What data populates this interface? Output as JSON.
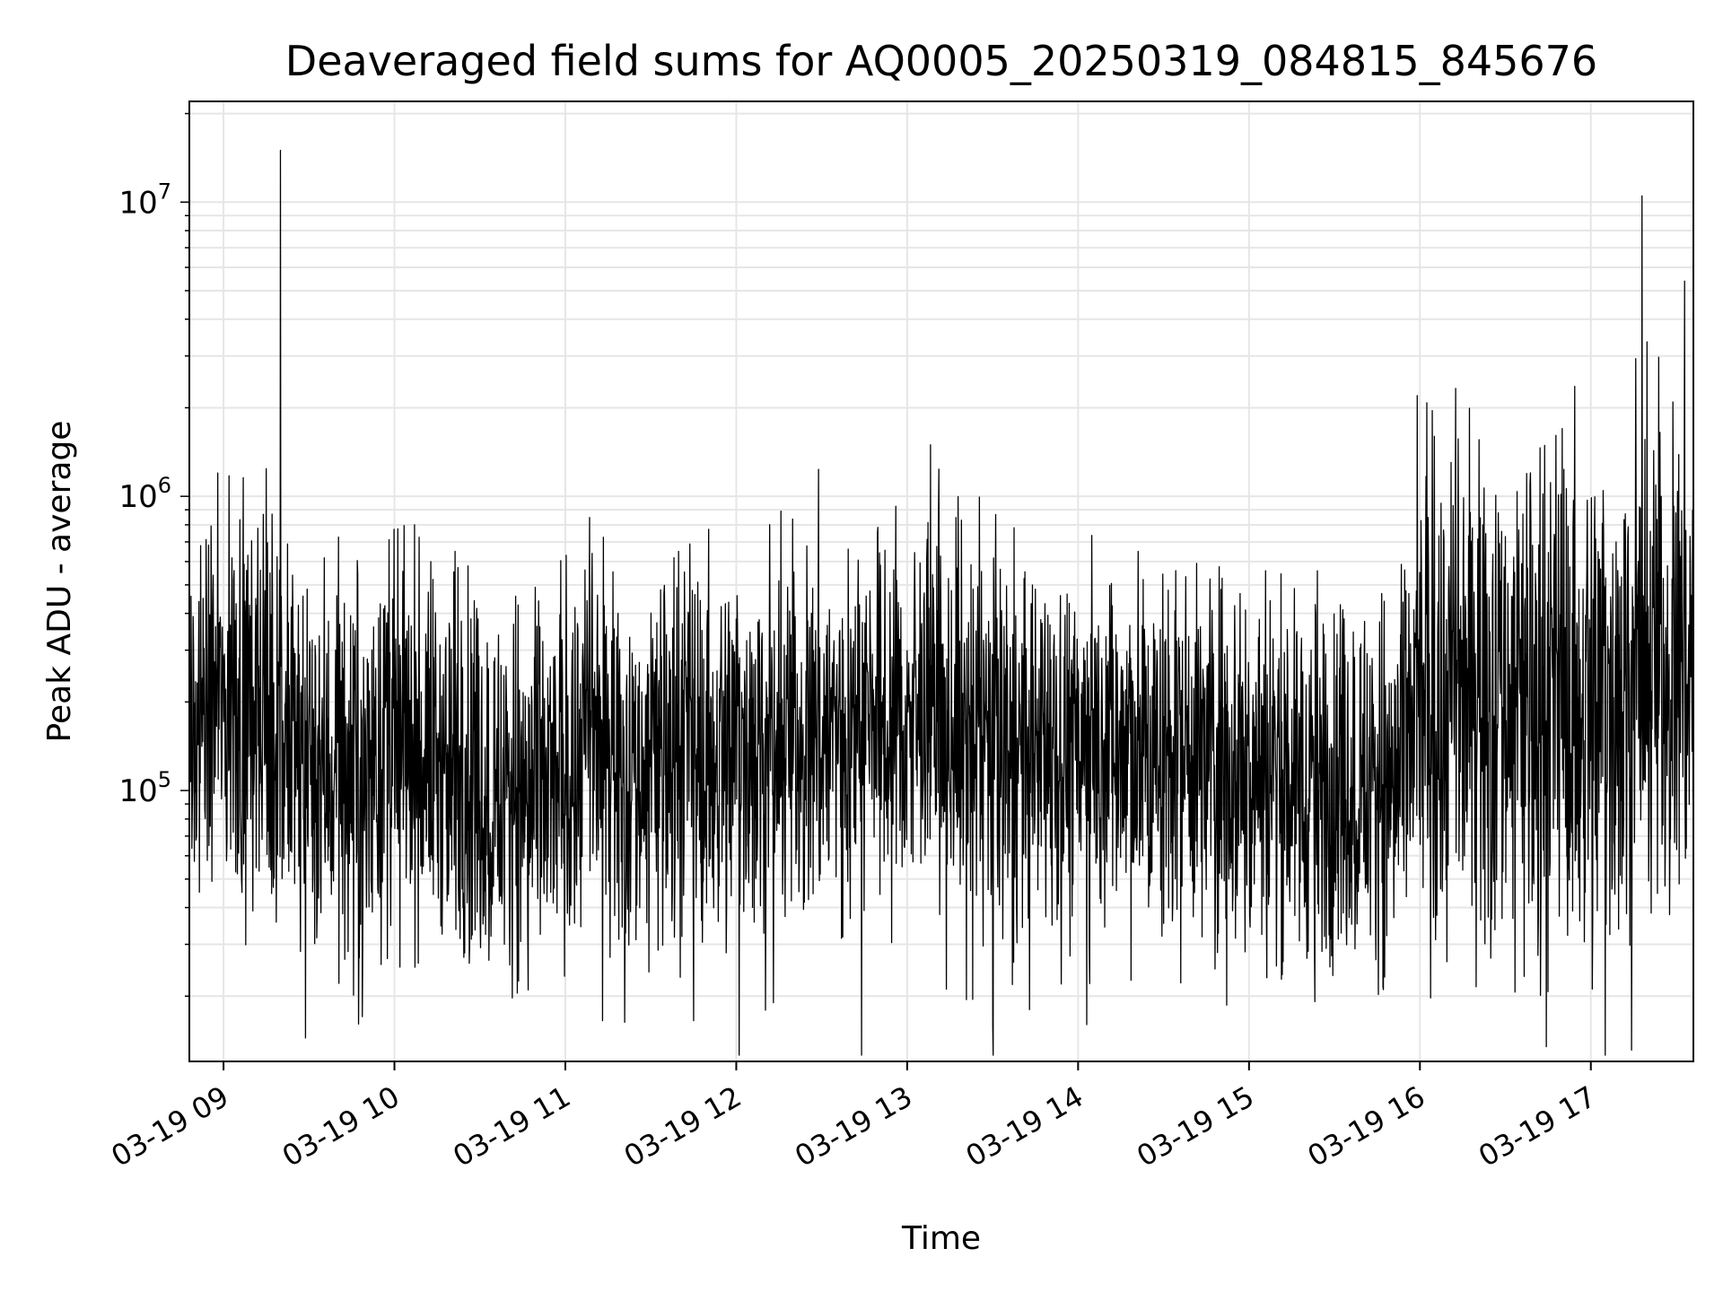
{
  "chart_data": {
    "type": "line",
    "title": "Deaveraged field sums for AQ0005_20250319_084815_845676",
    "xlabel": "Time",
    "ylabel": "Peak ADU - average",
    "yscale": "log",
    "xlim": [
      "03-19 08:48",
      "03-19 17:36"
    ],
    "ylim": [
      12000,
      22000000
    ],
    "grid": true,
    "line_color": "#000000",
    "x_ticks": [
      {
        "value": "03-19 09:00",
        "label": "03-19 09"
      },
      {
        "value": "03-19 10:00",
        "label": "03-19 10"
      },
      {
        "value": "03-19 11:00",
        "label": "03-19 11"
      },
      {
        "value": "03-19 12:00",
        "label": "03-19 12"
      },
      {
        "value": "03-19 13:00",
        "label": "03-19 13"
      },
      {
        "value": "03-19 14:00",
        "label": "03-19 14"
      },
      {
        "value": "03-19 15:00",
        "label": "03-19 15"
      },
      {
        "value": "03-19 16:00",
        "label": "03-19 16"
      },
      {
        "value": "03-19 17:00",
        "label": "03-19 17"
      }
    ],
    "y_ticks": [
      {
        "value": 100000,
        "base": "10",
        "exp": "5"
      },
      {
        "value": 1000000,
        "base": "10",
        "exp": "6"
      },
      {
        "value": 10000000,
        "base": "10",
        "exp": "7"
      }
    ],
    "series": [
      {
        "x": [
          "03-19 08:48",
          "03-19 08:54",
          "03-19 09:00",
          "03-19 09:06",
          "03-19 09:12",
          "03-19 09:18",
          "03-19 09:24",
          "03-19 09:30",
          "03-19 09:36",
          "03-19 09:42",
          "03-19 09:48",
          "03-19 09:54",
          "03-19 10:00",
          "03-19 10:06",
          "03-19 10:12",
          "03-19 10:18",
          "03-19 10:24",
          "03-19 10:30",
          "03-19 10:36",
          "03-19 10:42",
          "03-19 10:48",
          "03-19 10:54",
          "03-19 11:00",
          "03-19 11:06",
          "03-19 11:12",
          "03-19 11:18",
          "03-19 11:24",
          "03-19 11:30",
          "03-19 11:36",
          "03-19 11:42",
          "03-19 11:48",
          "03-19 11:54",
          "03-19 12:00",
          "03-19 12:06",
          "03-19 12:12",
          "03-19 12:18",
          "03-19 12:24",
          "03-19 12:30",
          "03-19 12:36",
          "03-19 12:42",
          "03-19 12:48",
          "03-19 12:54",
          "03-19 13:00",
          "03-19 13:06",
          "03-19 13:12",
          "03-19 13:18",
          "03-19 13:24",
          "03-19 13:30",
          "03-19 13:36",
          "03-19 13:42",
          "03-19 13:48",
          "03-19 13:54",
          "03-19 14:00",
          "03-19 14:06",
          "03-19 14:12",
          "03-19 14:18",
          "03-19 14:24",
          "03-19 14:30",
          "03-19 14:36",
          "03-19 14:42",
          "03-19 14:48",
          "03-19 14:54",
          "03-19 15:00",
          "03-19 15:06",
          "03-19 15:12",
          "03-19 15:18",
          "03-19 15:24",
          "03-19 15:30",
          "03-19 15:36",
          "03-19 15:42",
          "03-19 15:48",
          "03-19 15:54",
          "03-19 16:00",
          "03-19 16:06",
          "03-19 16:12",
          "03-19 16:18",
          "03-19 16:24",
          "03-19 16:30",
          "03-19 16:36",
          "03-19 16:42",
          "03-19 16:48",
          "03-19 16:54",
          "03-19 17:00",
          "03-19 17:06",
          "03-19 17:12",
          "03-19 17:18",
          "03-19 17:24",
          "03-19 17:30",
          "03-19 17:36"
        ],
        "y": [
          160000,
          180000,
          200000,
          190000,
          210000,
          150000,
          140000,
          130000,
          120000,
          125000,
          115000,
          120000,
          130000,
          140000,
          135000,
          120000,
          110000,
          105000,
          95000,
          100000,
          90000,
          95000,
          120000,
          150000,
          160000,
          140000,
          110000,
          130000,
          145000,
          160000,
          130000,
          140000,
          150000,
          155000,
          135000,
          150000,
          170000,
          160000,
          165000,
          175000,
          180000,
          170000,
          165000,
          175000,
          170000,
          160000,
          150000,
          155000,
          145000,
          140000,
          130000,
          145000,
          140000,
          145000,
          150000,
          140000,
          130000,
          125000,
          135000,
          145000,
          140000,
          130000,
          120000,
          125000,
          115000,
          110000,
          105000,
          100000,
          110000,
          105000,
          100000,
          110000,
          200000,
          190000,
          210000,
          230000,
          240000,
          220000,
          210000,
          200000,
          190000,
          200000,
          210000,
          220000,
          230000,
          250000,
          280000,
          300000,
          320000
        ]
      }
    ],
    "annotations_peaks": [
      {
        "x": "03-19 08:52",
        "y": 680000
      },
      {
        "x": "03-19 09:17",
        "y": 870000
      },
      {
        "x": "03-19 09:20",
        "y": 15000000
      },
      {
        "x": "03-19 15:59",
        "y": 2200000
      },
      {
        "x": "03-19 16:05",
        "y": 1600000
      },
      {
        "x": "03-19 16:50",
        "y": 1700000
      },
      {
        "x": "03-19 17:18",
        "y": 10500000
      }
    ],
    "annotations_dips": [
      {
        "x": "03-19 10:47",
        "y": 21000
      },
      {
        "x": "03-19 11:13",
        "y": 16500
      },
      {
        "x": "03-19 11:45",
        "y": 16500
      },
      {
        "x": "03-19 12:13",
        "y": 19000
      },
      {
        "x": "03-19 13:23",
        "y": 19500
      },
      {
        "x": "03-19 13:43",
        "y": 18000
      },
      {
        "x": "03-19 14:03",
        "y": 16000
      },
      {
        "x": "03-19 15:47",
        "y": 21500
      }
    ]
  }
}
